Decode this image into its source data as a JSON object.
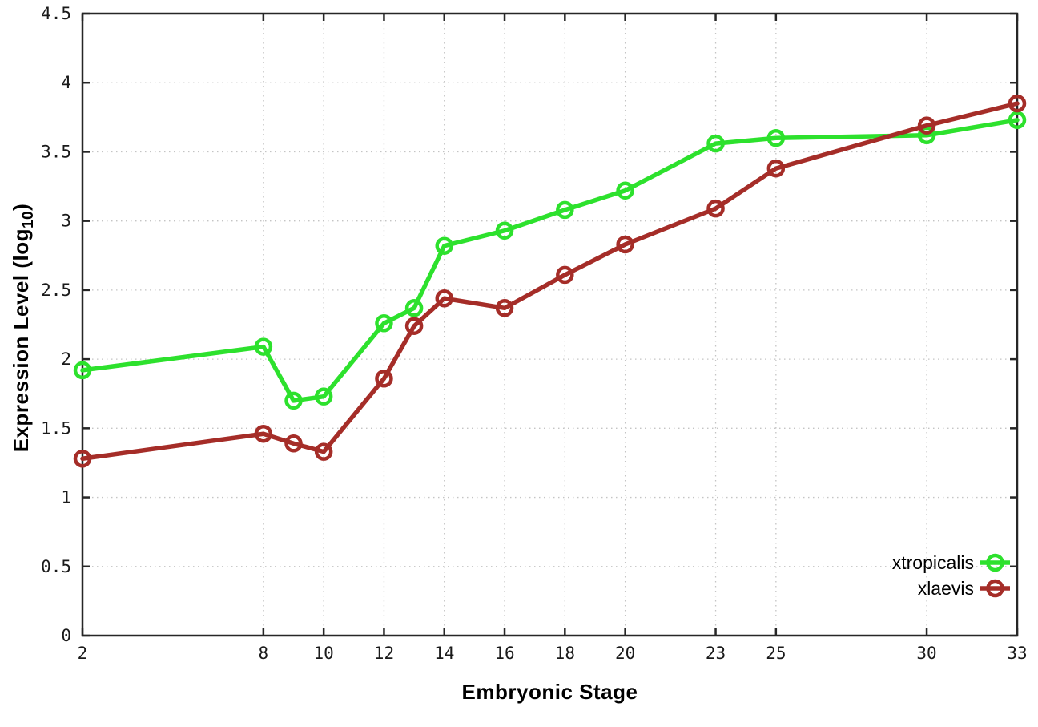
{
  "chart_data": {
    "type": "line",
    "title": "",
    "xlabel": "Embryonic Stage",
    "ylabel_main": "Expression Level (log",
    "ylabel_sub": "10",
    "ylabel_close": ")",
    "x": [
      2,
      8,
      9,
      10,
      12,
      13,
      14,
      16,
      18,
      20,
      23,
      25,
      30,
      33
    ],
    "series": [
      {
        "name": "xtropicalis",
        "color": "#2de12d",
        "values": [
          1.92,
          2.09,
          1.7,
          1.73,
          2.26,
          2.37,
          2.82,
          2.93,
          3.08,
          3.22,
          3.56,
          3.6,
          3.62,
          3.73
        ]
      },
      {
        "name": "xlaevis",
        "color": "#a52d28",
        "values": [
          1.28,
          1.46,
          1.39,
          1.33,
          1.86,
          2.24,
          2.44,
          2.37,
          2.61,
          2.83,
          3.09,
          3.38,
          3.69,
          3.85
        ]
      }
    ],
    "xlim": [
      2,
      33
    ],
    "ylim": [
      0,
      4.5
    ],
    "xtick_labels": [
      "2",
      "8",
      "10",
      "12",
      "14",
      "16",
      "18",
      "20",
      "23",
      "25",
      "30",
      "33"
    ],
    "ytick_labels": [
      "0",
      "0.5",
      "1",
      "1.5",
      "2",
      "2.5",
      "3",
      "3.5",
      "4",
      "4.5"
    ],
    "grid": true,
    "grid_style": "dotted",
    "legend_position": "bottom-right",
    "colors": {
      "grid": "#c4c4c4",
      "border": "#262626",
      "tick_text": "#1a1a1a"
    }
  }
}
